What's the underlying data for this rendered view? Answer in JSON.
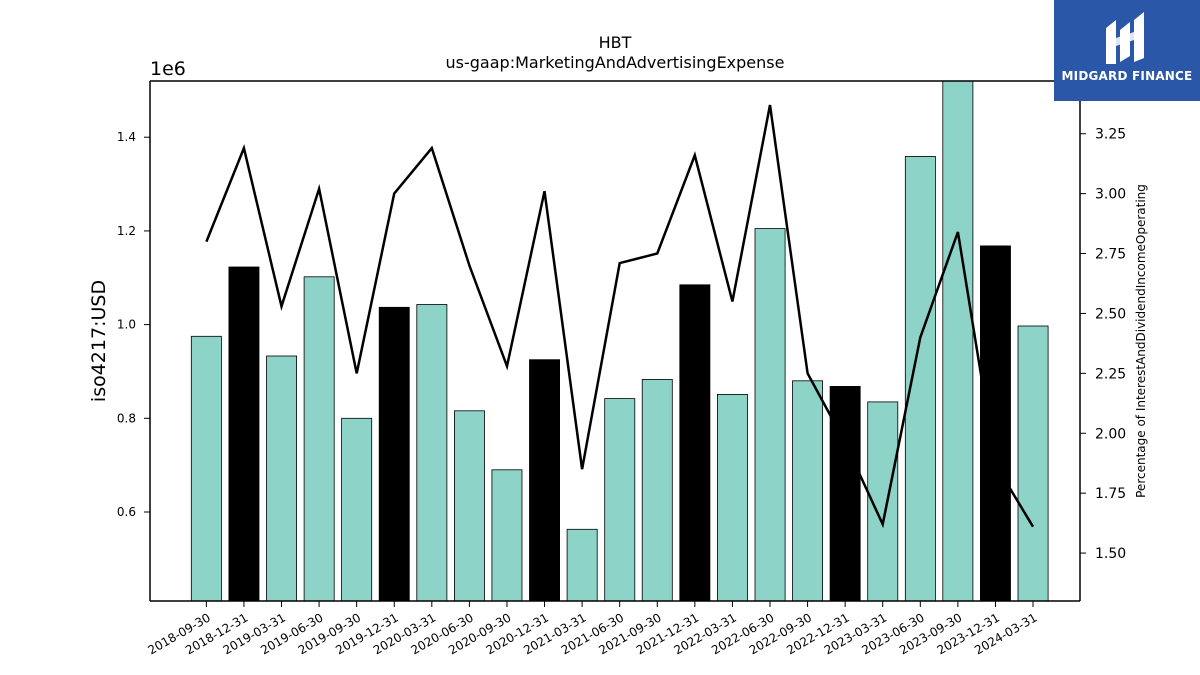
{
  "chart_data": {
    "type": "bar",
    "title": "HBT",
    "subtitle": "us-gaap:MarketingAndAdvertisingExpense",
    "ylabel": "iso4217:USD",
    "y_offset_label": "1e6",
    "y2label": "Percentage of InterestAndDividendIncomeOperating",
    "ylim": [
      0.41,
      1.52
    ],
    "y2lim": [
      1.3,
      3.47
    ],
    "yticks": [
      "0.6",
      "0.8",
      "1.0",
      "1.2",
      "1.4"
    ],
    "y2ticks": [
      "1.50",
      "1.75",
      "2.00",
      "2.25",
      "2.50",
      "2.75",
      "3.00",
      "3.25"
    ],
    "categories": [
      "2018-09-30",
      "2018-12-31",
      "2019-03-31",
      "2019-06-30",
      "2019-09-30",
      "2019-12-31",
      "2020-03-31",
      "2020-06-30",
      "2020-09-30",
      "2020-12-31",
      "2021-03-31",
      "2021-06-30",
      "2021-09-30",
      "2021-12-31",
      "2022-03-31",
      "2022-06-30",
      "2022-09-30",
      "2022-12-31",
      "2023-03-31",
      "2023-06-30",
      "2023-09-30",
      "2023-12-31",
      "2024-03-31"
    ],
    "series": [
      {
        "kind": "bar",
        "values": [
          0.975,
          1.123,
          0.933,
          1.102,
          0.8,
          1.037,
          1.043,
          0.816,
          0.69,
          0.925,
          0.563,
          0.842,
          0.883,
          1.085,
          0.851,
          1.205,
          0.88,
          0.868,
          0.835,
          1.359,
          1.52,
          1.168,
          0.997
        ],
        "colors": [
          "#8dd3c7",
          "#000000",
          "#8dd3c7",
          "#8dd3c7",
          "#8dd3c7",
          "#000000",
          "#8dd3c7",
          "#8dd3c7",
          "#8dd3c7",
          "#000000",
          "#8dd3c7",
          "#8dd3c7",
          "#8dd3c7",
          "#000000",
          "#8dd3c7",
          "#8dd3c7",
          "#8dd3c7",
          "#000000",
          "#8dd3c7",
          "#8dd3c7",
          "#8dd3c7",
          "#000000",
          "#8dd3c7"
        ]
      },
      {
        "kind": "line",
        "axis": "right",
        "color": "#000000",
        "values": [
          2.8,
          3.19,
          2.53,
          3.02,
          2.25,
          3.0,
          3.19,
          2.7,
          2.28,
          3.01,
          1.85,
          2.71,
          2.75,
          3.16,
          2.55,
          3.37,
          2.25,
          1.96,
          1.62,
          2.4,
          2.84,
          1.87,
          1.61
        ]
      }
    ],
    "grid": false,
    "legend": "none"
  },
  "logo": {
    "text": "MIDGARD FINANCE",
    "icon": "midgard-finance-logo-icon",
    "background": "#2b57a8"
  }
}
